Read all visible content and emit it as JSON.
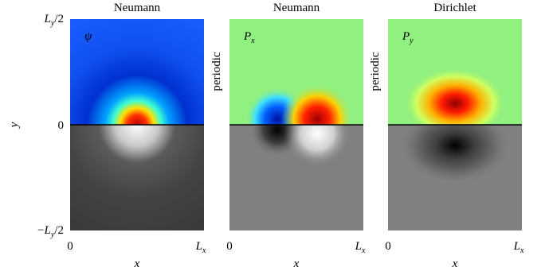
{
  "y_axis": {
    "label": "y",
    "ticks": [
      {
        "sign": "",
        "base": "L",
        "sub": "y",
        "rest": "/2"
      },
      {
        "base": "0"
      },
      {
        "sign": "−",
        "base": "L",
        "sub": "y",
        "rest": "/2"
      }
    ]
  },
  "panels": [
    {
      "title": "Neumann",
      "field": {
        "base": "ψ"
      },
      "x_ticks": [
        {
          "base": "0"
        },
        {
          "base": "L",
          "sub": "x"
        }
      ],
      "x_label": "x"
    },
    {
      "title": "Neumann",
      "side_label": "periodic",
      "field": {
        "base": "P",
        "sub": "x"
      },
      "x_ticks": [
        {
          "base": "0"
        },
        {
          "base": "L",
          "sub": "x"
        }
      ],
      "x_label": "x"
    },
    {
      "title": "Dirichlet",
      "side_label": "periodic",
      "field": {
        "base": "P",
        "sub": "y"
      },
      "x_ticks": [
        {
          "base": "0"
        },
        {
          "base": "L",
          "sub": "x"
        }
      ],
      "x_label": "x"
    }
  ]
}
